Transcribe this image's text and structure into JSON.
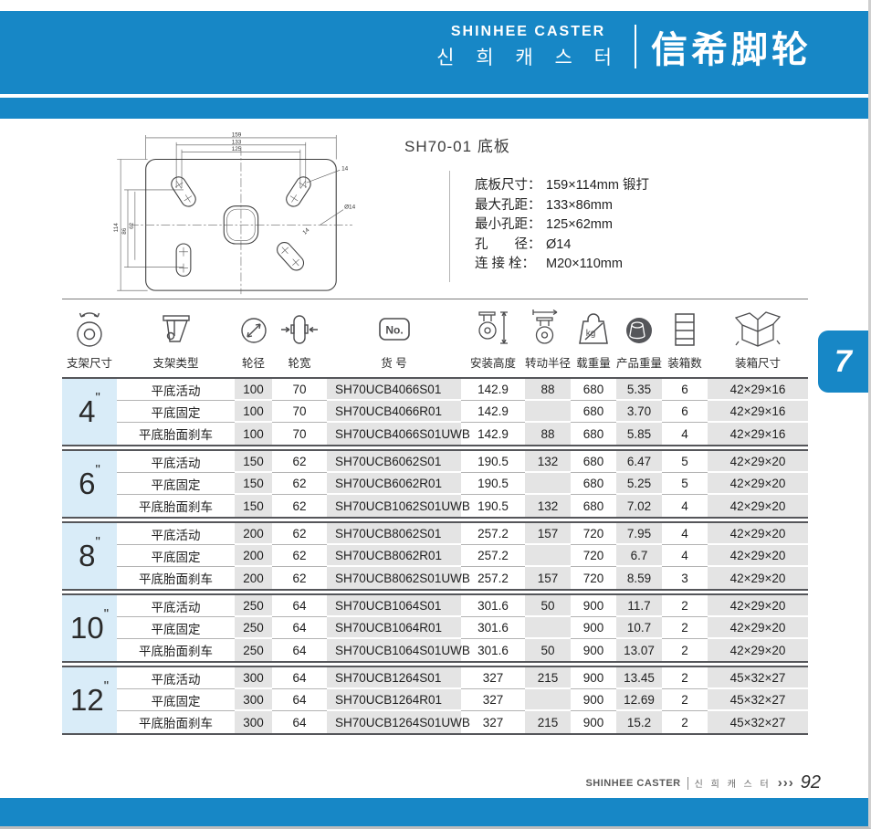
{
  "header": {
    "brand_en": "SHINHEE CASTER",
    "brand_kr": "신 희 캐 스 터",
    "brand_cn": "信希脚轮"
  },
  "product": {
    "title": "SH70-01 底板",
    "specs": [
      {
        "label": "底板尺寸：",
        "value": "159×114mm 锻打"
      },
      {
        "label": "最大孔距：",
        "value": "133×86mm"
      },
      {
        "label": "最小孔距：",
        "value": "125×62mm"
      },
      {
        "label": "孔　　径：",
        "value": "Ø14"
      },
      {
        "label": "连 接 栓：",
        "value": "M20×110mm"
      }
    ]
  },
  "drawing": {
    "dim_top": [
      "159",
      "133",
      "125"
    ],
    "dim_left": [
      "114",
      "86",
      "62"
    ],
    "label_slot_top": "14",
    "label_hole": "Ø14",
    "label_slot_bottom": "14"
  },
  "table": {
    "headers": [
      {
        "icon": "swivel-wheel-icon",
        "label": "支架尺寸"
      },
      {
        "icon": "bracket-icon",
        "label": "支架类型"
      },
      {
        "icon": "wheel-diameter-icon",
        "label": "轮径"
      },
      {
        "icon": "wheel-width-icon",
        "label": "轮宽"
      },
      {
        "icon": "no-badge-icon",
        "label": "货 号"
      },
      {
        "icon": "install-height-icon",
        "label": "安装高度"
      },
      {
        "icon": "turn-radius-icon",
        "label": "转动半径"
      },
      {
        "icon": "load-kg-icon",
        "label": "载重量"
      },
      {
        "icon": "product-weight-icon",
        "label": "产品重量"
      },
      {
        "icon": "carton-count-icon",
        "label": "装箱数"
      },
      {
        "icon": "carton-size-icon",
        "label": "装箱尺寸"
      }
    ],
    "groups": [
      {
        "size": "4",
        "mark": "\"",
        "rows": [
          {
            "type": "平底活动",
            "dia": "100",
            "width": "70",
            "sku": "SH70UCB4066S01",
            "height": "142.9",
            "radius": "88",
            "load": "680",
            "weight": "5.35",
            "qty": "6",
            "box": "42×29×16"
          },
          {
            "type": "平底固定",
            "dia": "100",
            "width": "70",
            "sku": "SH70UCB4066R01",
            "height": "142.9",
            "radius": "",
            "load": "680",
            "weight": "3.70",
            "qty": "6",
            "box": "42×29×16"
          },
          {
            "type": "平底胎面刹车",
            "dia": "100",
            "width": "70",
            "sku": "SH70UCB4066S01UWB",
            "height": "142.9",
            "radius": "88",
            "load": "680",
            "weight": "5.85",
            "qty": "4",
            "box": "42×29×16"
          }
        ]
      },
      {
        "size": "6",
        "mark": "\"",
        "rows": [
          {
            "type": "平底活动",
            "dia": "150",
            "width": "62",
            "sku": "SH70UCB6062S01",
            "height": "190.5",
            "radius": "132",
            "load": "680",
            "weight": "6.47",
            "qty": "5",
            "box": "42×29×20"
          },
          {
            "type": "平底固定",
            "dia": "150",
            "width": "62",
            "sku": "SH70UCB6062R01",
            "height": "190.5",
            "radius": "",
            "load": "680",
            "weight": "5.25",
            "qty": "5",
            "box": "42×29×20"
          },
          {
            "type": "平底胎面刹车",
            "dia": "150",
            "width": "62",
            "sku": "SH70UCB1062S01UWB",
            "height": "190.5",
            "radius": "132",
            "load": "680",
            "weight": "7.02",
            "qty": "4",
            "box": "42×29×20"
          }
        ]
      },
      {
        "size": "8",
        "mark": "\"",
        "rows": [
          {
            "type": "平底活动",
            "dia": "200",
            "width": "62",
            "sku": "SH70UCB8062S01",
            "height": "257.2",
            "radius": "157",
            "load": "720",
            "weight": "7.95",
            "qty": "4",
            "box": "42×29×20"
          },
          {
            "type": "平底固定",
            "dia": "200",
            "width": "62",
            "sku": "SH70UCB8062R01",
            "height": "257.2",
            "radius": "",
            "load": "720",
            "weight": "6.7",
            "qty": "4",
            "box": "42×29×20"
          },
          {
            "type": "平底胎面刹车",
            "dia": "200",
            "width": "62",
            "sku": "SH70UCB8062S01UWB",
            "height": "257.2",
            "radius": "157",
            "load": "720",
            "weight": "8.59",
            "qty": "3",
            "box": "42×29×20"
          }
        ]
      },
      {
        "size": "10",
        "mark": "\"",
        "rows": [
          {
            "type": "平底活动",
            "dia": "250",
            "width": "64",
            "sku": "SH70UCB1064S01",
            "height": "301.6",
            "radius": "50",
            "load": "900",
            "weight": "11.7",
            "qty": "2",
            "box": "42×29×20"
          },
          {
            "type": "平底固定",
            "dia": "250",
            "width": "64",
            "sku": "SH70UCB1064R01",
            "height": "301.6",
            "radius": "",
            "load": "900",
            "weight": "10.7",
            "qty": "2",
            "box": "42×29×20"
          },
          {
            "type": "平底胎面刹车",
            "dia": "250",
            "width": "64",
            "sku": "SH70UCB1064S01UWB",
            "height": "301.6",
            "radius": "50",
            "load": "900",
            "weight": "13.07",
            "qty": "2",
            "box": "42×29×20"
          }
        ]
      },
      {
        "size": "12",
        "mark": "\"",
        "rows": [
          {
            "type": "平底活动",
            "dia": "300",
            "width": "64",
            "sku": "SH70UCB1264S01",
            "height": "327",
            "radius": "215",
            "load": "900",
            "weight": "13.45",
            "qty": "2",
            "box": "45×32×27"
          },
          {
            "type": "平底固定",
            "dia": "300",
            "width": "64",
            "sku": "SH70UCB1264R01",
            "height": "327",
            "radius": "",
            "load": "900",
            "weight": "12.69",
            "qty": "2",
            "box": "45×32×27"
          },
          {
            "type": "平底胎面刹车",
            "dia": "300",
            "width": "64",
            "sku": "SH70UCB1264S01UWB",
            "height": "327",
            "radius": "215",
            "load": "900",
            "weight": "15.2",
            "qty": "2",
            "box": "45×32×27"
          }
        ]
      }
    ]
  },
  "side_tab": {
    "label": "7"
  },
  "footer": {
    "brand_en": "SHINHEE CASTER",
    "brand_kr": "신 희 캐 스 터",
    "chevrons": "›››",
    "page": "92"
  }
}
